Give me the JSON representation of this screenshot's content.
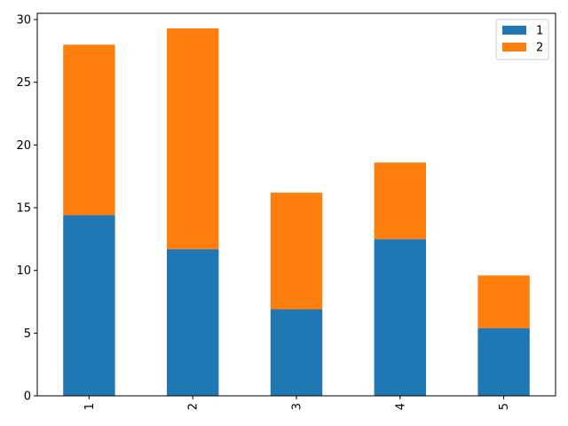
{
  "chart_data": {
    "type": "bar",
    "stacked": true,
    "categories": [
      "1",
      "2",
      "3",
      "4",
      "5"
    ],
    "series": [
      {
        "name": "1",
        "values": [
          14.4,
          11.7,
          6.9,
          12.5,
          5.4
        ],
        "color": "#1f77b4"
      },
      {
        "name": "2",
        "values": [
          13.6,
          17.6,
          9.3,
          6.1,
          4.2
        ],
        "color": "#ff7f0e"
      }
    ],
    "title": "",
    "xlabel": "",
    "ylabel": "",
    "ylim": [
      0,
      30.5
    ],
    "yticks": [
      "0",
      "5",
      "10",
      "15",
      "20",
      "25",
      "30"
    ],
    "xtick_rotation": "vertical",
    "grid": false,
    "legend_position": "top-right"
  }
}
